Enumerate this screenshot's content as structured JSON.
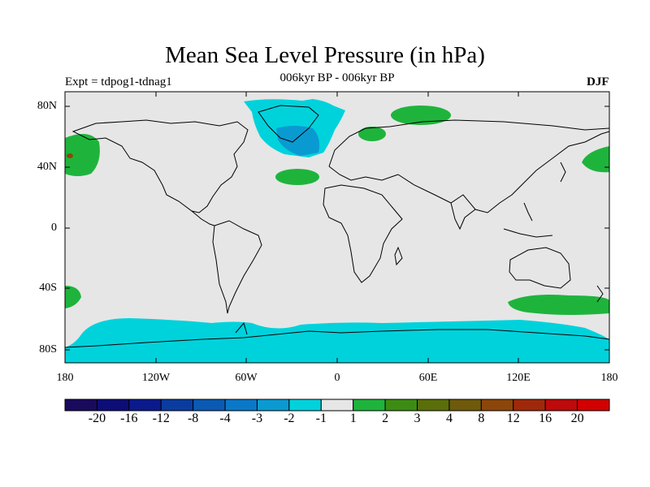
{
  "title": "Mean Sea Level Pressure (in hPa)",
  "subtitle": "006kyr BP - 006kyr BP",
  "experiment": "Expt = tdpog1-tdnag1",
  "season": "DJF",
  "lat_labels": [
    "80N",
    "40N",
    "0",
    "40S",
    "80S"
  ],
  "lon_labels": [
    "180",
    "120W",
    "60W",
    "0",
    "60E",
    "120E",
    "180"
  ],
  "colorbar": {
    "colors": [
      "#1a0a5e",
      "#0d0d78",
      "#0a1a8c",
      "#0a3ca0",
      "#0a5ab4",
      "#0a78c8",
      "#0a9ad2",
      "#00d2dc",
      "#e6e6e6",
      "#1eb43c",
      "#3c8c14",
      "#5a6e0a",
      "#6e5a0a",
      "#8c460a",
      "#a0280a",
      "#be0a0a",
      "#d20000"
    ],
    "labels": [
      "-20",
      "-16",
      "-12",
      "-8",
      "-4",
      "-3",
      "-2",
      "-1",
      "1",
      "2",
      "3",
      "4",
      "8",
      "12",
      "16",
      "20"
    ]
  },
  "map_colors": {
    "background": "#e6e6e6",
    "coast": "#000000",
    "positive": "#1eb43c",
    "negative": "#00d2dc",
    "strong_negative": "#0a9ad2",
    "brown": "#8c460a"
  }
}
